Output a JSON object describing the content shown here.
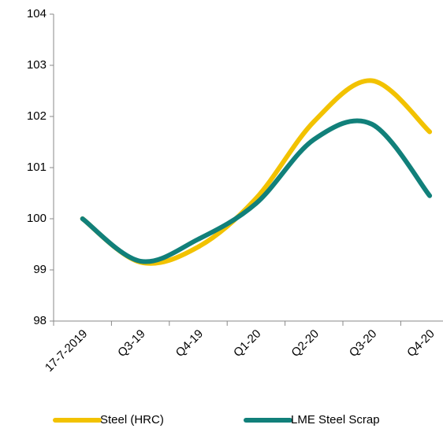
{
  "chart_data": {
    "type": "line",
    "categories": [
      "17-7-2019",
      "Q3-19",
      "Q4-19",
      "Q1-20",
      "Q2-20",
      "Q3-20",
      "Q4-20"
    ],
    "series": [
      {
        "name": "Steel (HRC)",
        "color": "#f2c200",
        "values": [
          100,
          99.15,
          99.45,
          100.4,
          101.9,
          102.7,
          101.7
        ]
      },
      {
        "name": "LME Steel Scrap",
        "color": "#11807a",
        "values": [
          100,
          99.17,
          99.6,
          100.3,
          101.55,
          101.85,
          100.45
        ]
      }
    ],
    "ylim": [
      98,
      104
    ],
    "yticks": [
      98,
      99,
      100,
      101,
      102,
      103,
      104
    ],
    "legend": "bottom"
  }
}
